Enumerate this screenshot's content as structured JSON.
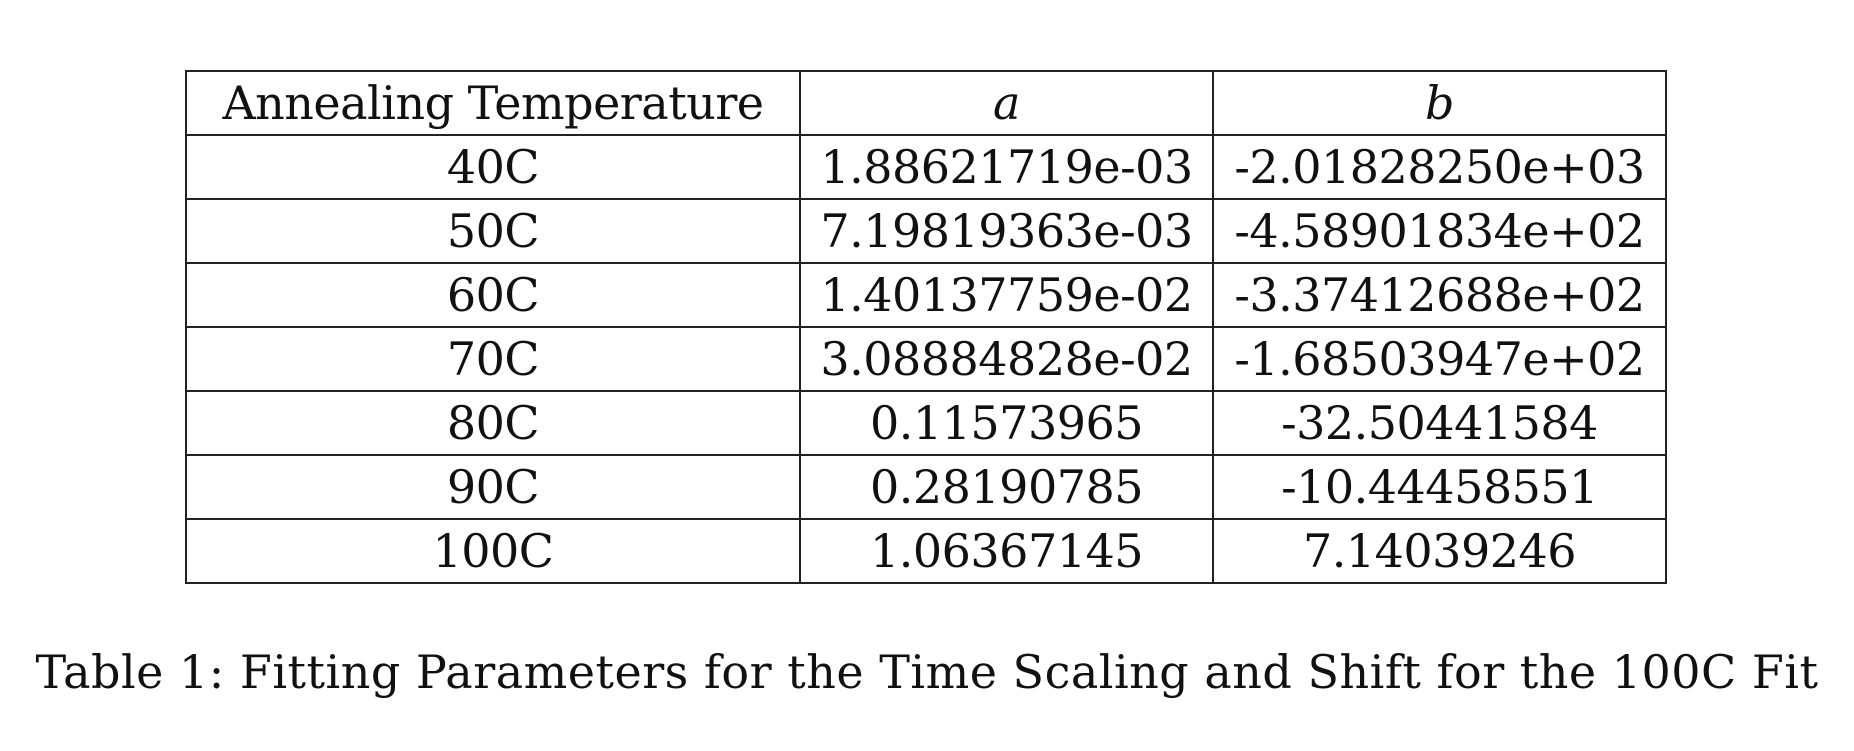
{
  "table": {
    "headers": {
      "temperature": "Annealing Temperature",
      "a": "a",
      "b": "b"
    },
    "rows": [
      {
        "temperature": "40C",
        "a": "1.88621719e-03",
        "b": "-2.01828250e+03"
      },
      {
        "temperature": "50C",
        "a": "7.19819363e-03",
        "b": "-4.58901834e+02"
      },
      {
        "temperature": "60C",
        "a": "1.40137759e-02",
        "b": "-3.37412688e+02"
      },
      {
        "temperature": "70C",
        "a": "3.08884828e-02",
        "b": "-1.68503947e+02"
      },
      {
        "temperature": "80C",
        "a": "0.11573965",
        "b": "-32.50441584"
      },
      {
        "temperature": "90C",
        "a": "0.28190785",
        "b": "-10.44458551"
      },
      {
        "temperature": "100C",
        "a": "1.06367145",
        "b": "7.14039246"
      }
    ]
  },
  "caption": "Table 1: Fitting Parameters for the Time Scaling and Shift for the 100C Fit"
}
